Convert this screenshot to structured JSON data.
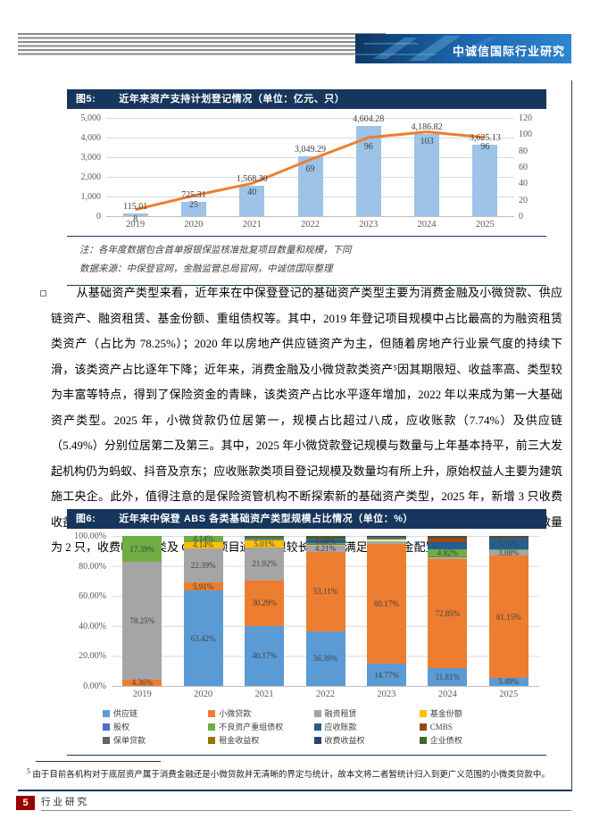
{
  "header": {
    "brand": "中诚信国际行业研究"
  },
  "figure5": {
    "label": "图5:",
    "title": "近年来资产支持计划登记情况（单位：亿元、只）",
    "note": "注：各年度数据包含首单报银保监核准批复项目数量和规模，下同",
    "source": "数据来源：中保登官网，金融监管总局官网，中诚信国际整理"
  },
  "body_paragraph": "从基础资产类型来看，近年来在中保登登记的基础资产类型主要为消费金融及小微贷款、供应链资产、融资租赁、基金份额、重组债权等。其中，2019 年登记项目规模中占比最高的为融资租赁类资产（占比为 78.25%）；2020 年以房地产供应链资产为主，但随着房地产行业景气度的持续下滑，该类资产占比逐年下降；近年来，消费金融及小微贷款类资产⁵因其期限短、收益率高、类型较为丰富等特点，得到了保险资金的青睐，该类资产占比水平逐年增加，2022 年以来成为第一大基础资产类型。2025 年，小微贷款仍位居第一，规模占比超过八成，应收账款（7.74%）及供应链（5.49%）分别位居第二及第三。其中，2025 年小微贷款登记规模与数量与上年基本持平，前三大发起机构仍为蚂蚁、抖音及京东；应收账款类项目登记规模及数量均有所上升，原始权益人主要为建筑施工央企。此外，值得注意的是保险资管机构不断探索新的基础资产类型，2025 年，新增 3 只收费收益权项目，包括蒸汽收费收益权、港口收费收益权及污水收费收益权；同期，CMBS 项目登记数量为 2 只，收费收益权类及 CMBS 项目通常期限较长，能够满足保险资金配置需求。",
  "figure6": {
    "label": "图6:",
    "title": "近年来中保登 ABS 各类基础资产类型规模占比情况（单位：%）"
  },
  "footnote": {
    "marker": "5",
    "text": "由于目前各机构对于底层资产属于消费金融还是小微贷款并无清晰的界定与统计，故本文将二者暂统计归入到更广义范围的小微类贷款中。"
  },
  "footer": {
    "page_number": "5",
    "section": "行业研究"
  },
  "chart_data": [
    {
      "id": "chart5",
      "type": "bar",
      "title": "近年来资产支持计划登记情况",
      "unit": "亿元、只",
      "categories": [
        "2019",
        "2020",
        "2021",
        "2022",
        "2023",
        "2024",
        "2025"
      ],
      "bar_series": {
        "name": "登记规模（亿元）",
        "color": "#9DC3E6",
        "values": [
          115.01,
          725.31,
          1568.3,
          3049.29,
          4604.28,
          4186.82,
          3625.13
        ],
        "labels": [
          "115.01",
          "725.31",
          "1,568.30",
          "3,049.29",
          "4,604.28",
          "4,186.82",
          "3,625.13"
        ]
      },
      "line_series": {
        "name": "登记数量（只）",
        "color": "#ED7D31",
        "values": [
          8,
          25,
          40,
          69,
          96,
          103,
          96
        ],
        "labels": [
          "8",
          "25",
          "40",
          "69",
          "96",
          "103",
          "96"
        ]
      },
      "left_axis": {
        "max": 5000,
        "ticks": [
          "5,000",
          "4,000",
          "3,000",
          "2,000",
          "1,000",
          "0"
        ]
      },
      "right_axis": {
        "max": 120,
        "ticks": [
          "120",
          "100",
          "80",
          "60",
          "40",
          "20",
          "0"
        ]
      },
      "grid": true,
      "legend_position": "none"
    },
    {
      "id": "chart6",
      "type": "bar",
      "stacked": true,
      "title": "近年来中保登 ABS 各类基础资产类型规模占比情况",
      "unit": "%",
      "categories": [
        "2019",
        "2020",
        "2021",
        "2022",
        "2023",
        "2024",
        "2025"
      ],
      "y_axis": {
        "max": 100,
        "ticks": [
          "100.00%",
          "80.00%",
          "60.00%",
          "40.00%",
          "20.00%",
          "0.00%"
        ]
      },
      "grid": true,
      "legend_position": "bottom",
      "legend_columns": 4,
      "series": [
        {
          "name": "供应链",
          "color": "#5B9BD5",
          "values": [
            0,
            63.42,
            40.17,
            36.39,
            14.77,
            11.81,
            5.49
          ],
          "labels": [
            "",
            "63.42%",
            "40.17%",
            "36.39%",
            "14.77%",
            "11.81%",
            "5.49%"
          ]
        },
        {
          "name": "小微贷款",
          "color": "#ED7D31",
          "values": [
            4.36,
            5.91,
            30.29,
            53.11,
            80.17,
            72.85,
            81.15
          ],
          "labels": [
            "4.36%",
            "5.91%",
            "30.29%",
            "53.11%",
            "80.17%",
            "72.85%",
            "81.15%"
          ]
        },
        {
          "name": "融资租赁",
          "color": "#A5A5A5",
          "values": [
            78.25,
            22.39,
            21.92,
            4.21,
            1.8,
            0.8,
            3.88
          ],
          "labels": [
            "78.25%",
            "22.39%",
            "21.92%",
            "4.21%",
            "",
            "",
            "3.88%"
          ]
        },
        {
          "name": "基金份额",
          "color": "#FFC000",
          "values": [
            0,
            4.14,
            5.01,
            0.3,
            0.8,
            0.3,
            0
          ],
          "labels": [
            "",
            "4.14%",
            "5.01%",
            "",
            "",
            "",
            ""
          ]
        },
        {
          "name": "股权",
          "color": "#4472C4",
          "values": [
            0,
            0,
            0.3,
            0.4,
            0.4,
            0.4,
            0
          ],
          "labels": [
            "",
            "",
            "",
            "",
            "",
            "",
            ""
          ]
        },
        {
          "name": "不良资产重组债权",
          "color": "#70AD47",
          "values": [
            17.39,
            4.14,
            0.8,
            0.6,
            0.5,
            4.82,
            0.3
          ],
          "labels": [
            "17.39%",
            "4.14%",
            "",
            "",
            "",
            "4.82%",
            ""
          ]
        },
        {
          "name": "应收账款",
          "color": "#255E91",
          "values": [
            0,
            0,
            0.4,
            3.08,
            0.5,
            4.9,
            7.74
          ],
          "labels": [
            "",
            "",
            "",
            "3.08%",
            "",
            "",
            "7.74%"
          ]
        },
        {
          "name": "CMBS",
          "color": "#9E480E",
          "values": [
            0,
            0,
            0,
            0,
            0,
            2.7,
            0.5
          ],
          "labels": [
            "",
            "",
            "",
            "",
            "",
            "",
            ""
          ]
        },
        {
          "name": "保单贷款",
          "color": "#636363",
          "values": [
            0,
            0,
            0.3,
            0.2,
            0.2,
            0,
            0
          ],
          "labels": [
            "",
            "",
            "",
            "",
            "",
            "",
            ""
          ]
        },
        {
          "name": "租金收益权",
          "color": "#997300",
          "values": [
            0,
            0,
            0.3,
            0.2,
            0,
            0,
            0
          ],
          "labels": [
            "",
            "",
            "",
            "",
            "",
            "",
            ""
          ]
        },
        {
          "name": "收费收益权",
          "color": "#264478",
          "values": [
            0,
            0,
            0.3,
            0.4,
            0.86,
            1.0,
            0.6
          ],
          "labels": [
            "",
            "",
            "",
            "",
            "",
            "",
            ""
          ]
        },
        {
          "name": "企业债权",
          "color": "#43682B",
          "values": [
            0,
            0,
            0.21,
            1.11,
            0,
            0.42,
            0.34
          ],
          "labels": [
            "",
            "",
            "",
            "",
            "",
            "",
            ""
          ]
        }
      ]
    }
  ]
}
